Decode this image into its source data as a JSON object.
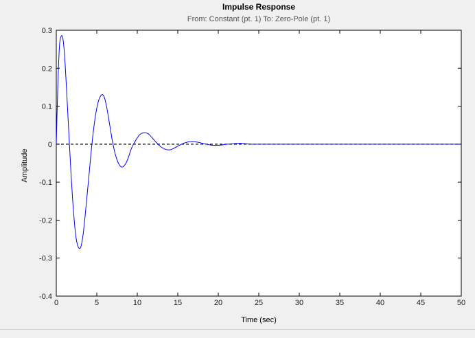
{
  "chart_data": {
    "type": "line",
    "title": "Impulse Response",
    "subtitle": "From: Constant (pt. 1)  To: Zero-Pole (pt. 1)",
    "xlabel": "Time (sec)",
    "ylabel": "Amplitude",
    "xlim": [
      0,
      50
    ],
    "ylim": [
      -0.4,
      0.3
    ],
    "xticks": [
      0,
      5,
      10,
      15,
      20,
      25,
      30,
      35,
      40,
      45,
      50
    ],
    "yticks": [
      -0.4,
      -0.3,
      -0.2,
      -0.1,
      0,
      0.1,
      0.2,
      0.3
    ],
    "grid": false,
    "series": [
      {
        "color": "#0000ff",
        "x": [
          0,
          0.2,
          0.4,
          0.6,
          0.8,
          1.0,
          1.2,
          1.5,
          1.8,
          2.1,
          2.4,
          2.7,
          3.0,
          3.3,
          3.6,
          4.0,
          4.4,
          4.8,
          5.2,
          5.6,
          5.9,
          6.2,
          6.6,
          7.0,
          7.4,
          7.8,
          8.2,
          8.6,
          8.9,
          9.3,
          9.8,
          10.3,
          10.8,
          11.3,
          11.7,
          12.2,
          12.8,
          13.4,
          14.0,
          14.6,
          15.1,
          15.7,
          16.3,
          16.9,
          17.5,
          18.1,
          18.7,
          19.3,
          19.9,
          20.5,
          21.1,
          21.7,
          22.3,
          22.9,
          23.5,
          24.1,
          24.7,
          25.5,
          27,
          30,
          35,
          40,
          45,
          50
        ],
        "y": [
          0.0,
          0.16,
          0.26,
          0.284,
          0.28,
          0.24,
          0.17,
          0.05,
          -0.07,
          -0.17,
          -0.24,
          -0.27,
          -0.272,
          -0.24,
          -0.18,
          -0.09,
          0.0,
          0.07,
          0.113,
          0.13,
          0.125,
          0.1,
          0.05,
          0.0,
          -0.035,
          -0.055,
          -0.06,
          -0.05,
          -0.035,
          -0.01,
          0.01,
          0.025,
          0.03,
          0.028,
          0.02,
          0.008,
          -0.005,
          -0.013,
          -0.015,
          -0.01,
          -0.004,
          0.002,
          0.006,
          0.007,
          0.005,
          0.002,
          -0.001,
          -0.003,
          -0.003,
          -0.002,
          0.0,
          0.001,
          0.002,
          0.002,
          0.001,
          0.0,
          0.0,
          0.0,
          0.0,
          0.0,
          0.0,
          0.0,
          0.0,
          0.0
        ]
      }
    ],
    "reference_line": {
      "y": 0,
      "style": "dashed",
      "color": "#000000"
    }
  }
}
